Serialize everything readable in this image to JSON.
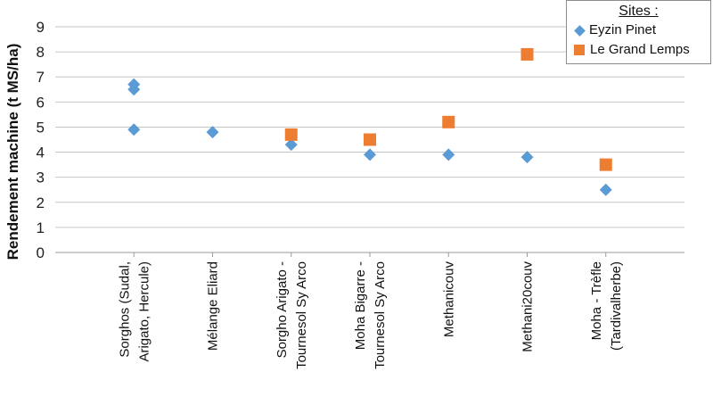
{
  "chart_data": {
    "type": "scatter",
    "title": "",
    "xlabel": "",
    "ylabel": "Rendement machine (t MS/ha)",
    "ylim": [
      0,
      9
    ],
    "yticks": [
      0,
      1,
      2,
      3,
      4,
      5,
      6,
      7,
      8,
      9
    ],
    "grid": true,
    "legend_position": "top-right",
    "legend_title": "Sites :",
    "categories": [
      [
        "Sorghos (Sudal,",
        "Arigato, Hercule)"
      ],
      [
        "Mélange Eliard"
      ],
      [
        "Sorgho Arigato -",
        "Tournesol Sy Arco"
      ],
      [
        "Moha Bigarre -",
        "Tournesol Sy Arco"
      ],
      [
        "Methanicouv"
      ],
      [
        "Methani20couv"
      ],
      [
        "Moha - Trèfle",
        "(Tardivalherbe)"
      ]
    ],
    "series": [
      {
        "name": "Eyzin Pinet",
        "marker": "diamond",
        "color": "#5b9bd5",
        "points": [
          {
            "category": 0,
            "y": 6.7
          },
          {
            "category": 0,
            "y": 6.5
          },
          {
            "category": 0,
            "y": 4.9
          },
          {
            "category": 1,
            "y": 4.8
          },
          {
            "category": 2,
            "y": 4.3
          },
          {
            "category": 3,
            "y": 3.9
          },
          {
            "category": 4,
            "y": 3.9
          },
          {
            "category": 5,
            "y": 3.8
          },
          {
            "category": 6,
            "y": 2.5
          }
        ]
      },
      {
        "name": "Le Grand Lemps",
        "marker": "square",
        "color": "#ed7d31",
        "points": [
          {
            "category": 2,
            "y": 4.7
          },
          {
            "category": 3,
            "y": 4.5
          },
          {
            "category": 4,
            "y": 5.2
          },
          {
            "category": 5,
            "y": 7.9
          },
          {
            "category": 6,
            "y": 3.5
          }
        ]
      }
    ]
  }
}
